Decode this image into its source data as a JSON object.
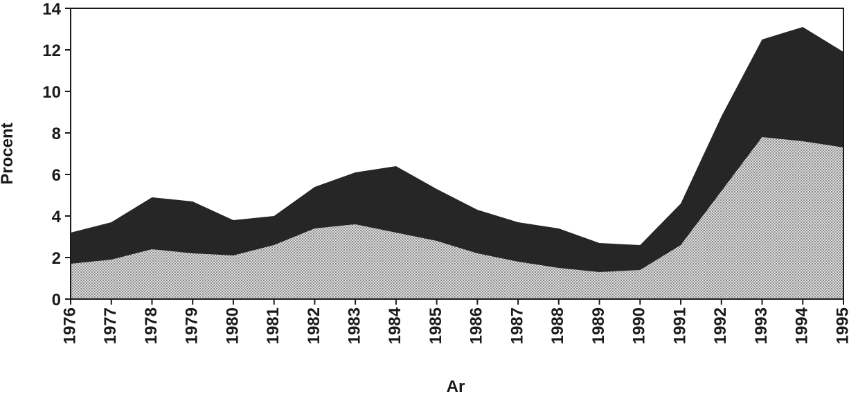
{
  "chart_data": {
    "type": "area",
    "stacked": true,
    "xlabel": "Ar",
    "ylabel": "Procent",
    "ylim": [
      0,
      14
    ],
    "yticks": [
      0,
      2,
      4,
      6,
      8,
      10,
      12,
      14
    ],
    "x": [
      "1976",
      "1977",
      "1978",
      "1979",
      "1980",
      "1981",
      "1982",
      "1983",
      "1984",
      "1985",
      "1986",
      "1987",
      "1988",
      "1989",
      "1990",
      "1991",
      "1992",
      "1993",
      "1994",
      "1995"
    ],
    "series": [
      {
        "fill": "#d6d6d6",
        "pattern": "dotted",
        "values": [
          1.7,
          1.9,
          2.4,
          2.2,
          2.1,
          2.6,
          3.4,
          3.6,
          3.2,
          2.8,
          2.2,
          1.8,
          1.5,
          1.3,
          1.4,
          2.6,
          5.2,
          7.8,
          7.6,
          7.3
        ]
      },
      {
        "fill": "#262626",
        "pattern": "solid",
        "values": [
          1.5,
          1.8,
          2.5,
          2.5,
          1.7,
          1.4,
          2.0,
          2.5,
          3.2,
          2.5,
          2.1,
          1.9,
          1.9,
          1.4,
          1.2,
          2.0,
          3.6,
          4.7,
          5.5,
          4.6
        ]
      }
    ],
    "grid": false,
    "legend": "none"
  }
}
